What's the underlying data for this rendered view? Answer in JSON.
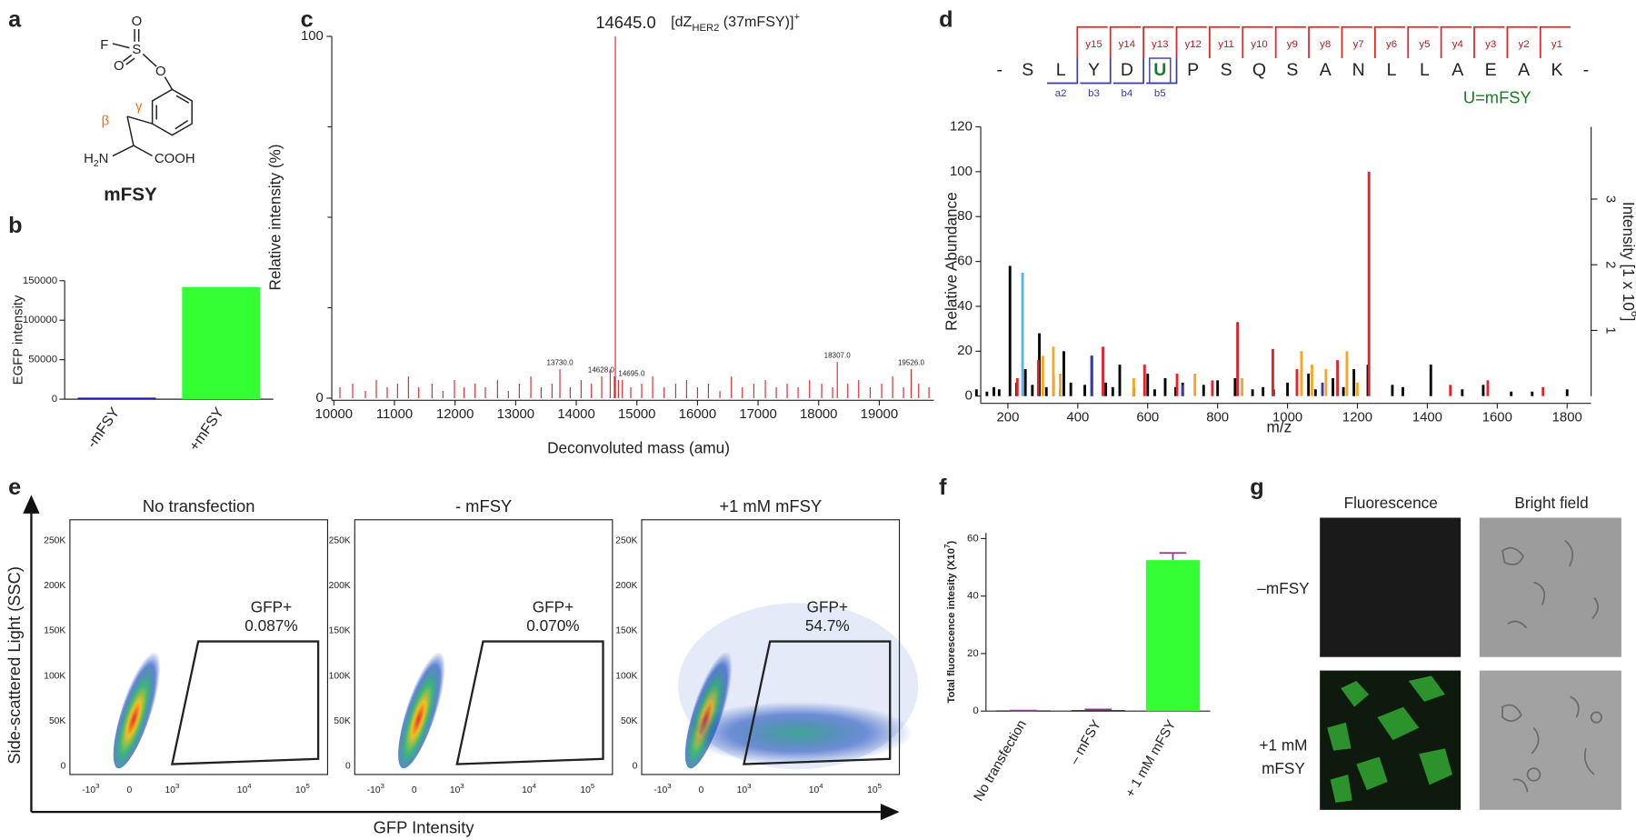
{
  "panel_labels": [
    "a",
    "b",
    "c",
    "d",
    "e",
    "f",
    "g"
  ],
  "structure": {
    "fluorine": "F",
    "sulfur": "S",
    "oxygens": [
      "O",
      "O",
      "O"
    ],
    "beta": "β",
    "gamma": "γ",
    "amine": [
      "H",
      "2",
      "N"
    ],
    "acid": "COOH",
    "name": "mFSY"
  },
  "chart_data": [
    {
      "type": "bar",
      "ylabel": "EGFP intensity",
      "categories": [
        "-mFSY",
        "+mFSY"
      ],
      "values": [
        2000,
        142000
      ],
      "colors": [
        "#1c1ca8",
        "#33ff33"
      ],
      "ylim": [
        0,
        150000
      ],
      "yticks": [
        0,
        50000,
        100000,
        150000
      ]
    },
    {
      "type": "spectrum",
      "xlabel": "Deconvoluted mass (amu)",
      "ylabel": "Relative intensity (%)",
      "annotation": [
        "[dZ",
        "HER2",
        " (37mFSY)]",
        "+"
      ],
      "xlim": [
        10000,
        19900
      ],
      "xticks": [
        10000,
        11000,
        12000,
        13000,
        14000,
        15000,
        16000,
        17000,
        18000,
        19000
      ],
      "ylim": [
        0,
        100
      ],
      "yticks": [
        0,
        100
      ],
      "minor_yticks": [
        25,
        50,
        75
      ],
      "series": [
        {
          "color": "#e8202a",
          "x": [
            13730,
            14628,
            14645,
            14695,
            18307,
            19526
          ],
          "values": [
            8,
            6,
            100,
            5,
            10,
            8
          ],
          "labels": [
            "13730.0",
            "14628.0",
            "14645.0",
            "14695.0",
            "18307.0",
            "19526.0"
          ]
        },
        {
          "color": "#e8202a",
          "x": [
            10100,
            10310,
            10520,
            10700,
            10880,
            11050,
            11230,
            11400,
            11620,
            11800,
            11990,
            12150,
            12330,
            12500,
            12700,
            12880,
            13060,
            13250,
            13420,
            13600,
            13900,
            14080,
            14250,
            14420,
            14560,
            14760,
            14900,
            15080,
            15260,
            15450,
            15640,
            15820,
            16000,
            16180,
            16370,
            16560,
            16740,
            16930,
            17120,
            17300,
            17480,
            17660,
            17850,
            18050,
            18230,
            18480,
            18660,
            18850,
            19040,
            19220,
            19400,
            19650,
            19820
          ],
          "values": [
            3,
            4,
            2,
            5,
            3,
            4,
            6,
            3,
            4,
            2,
            5,
            3,
            4,
            3,
            5,
            2,
            4,
            6,
            3,
            4,
            3,
            5,
            4,
            6,
            8,
            5,
            3,
            4,
            6,
            3,
            4,
            5,
            3,
            4,
            2,
            6,
            3,
            4,
            5,
            3,
            4,
            3,
            5,
            4,
            3,
            4,
            5,
            3,
            4,
            6,
            3,
            4,
            3
          ]
        }
      ]
    },
    {
      "type": "spectrum",
      "xlabel": "m/z",
      "ylabel": "Relative Abundance",
      "y2label": [
        "Intensity [1 x 10",
        "6",
        "]"
      ],
      "xlim": [
        100,
        1880
      ],
      "xticks": [
        200,
        400,
        600,
        800,
        1000,
        1200,
        1400,
        1600,
        1800
      ],
      "ylim": [
        0,
        120
      ],
      "yticks": [
        0,
        20,
        40,
        60,
        80,
        100,
        120
      ],
      "y2lim": [
        0,
        4.1
      ],
      "y2ticks": [
        1,
        2,
        3
      ],
      "series": [
        {
          "color": "#000000",
          "x": [
            110,
            140,
            160,
            175,
            206,
            225,
            250,
            270,
            290,
            310,
            330,
            350,
            360,
            380,
            420,
            440,
            480,
            500,
            520,
            560,
            600,
            620,
            650,
            680,
            700,
            760,
            800,
            850,
            900,
            930,
            960,
            1000,
            1060,
            1080,
            1130,
            1160,
            1190,
            1230,
            1300,
            1330,
            1410,
            1500,
            1560,
            1640,
            1700,
            1800
          ],
          "values": [
            3,
            2,
            4,
            3,
            58,
            6,
            12,
            5,
            28,
            4,
            9,
            3,
            20,
            6,
            5,
            18,
            6,
            4,
            14,
            4,
            10,
            3,
            8,
            4,
            6,
            5,
            7,
            8,
            3,
            4,
            3,
            6,
            10,
            3,
            8,
            4,
            12,
            14,
            5,
            4,
            14,
            3,
            5,
            2,
            2,
            3
          ]
        },
        {
          "color": "#e8202a",
          "x": [
            227,
            287,
            472,
            591,
            684,
            785,
            857,
            958,
            1027,
            1143,
            1233,
            1466,
            1573,
            1731
          ],
          "values": [
            8,
            16,
            22,
            14,
            10,
            7,
            33,
            21,
            12,
            16,
            100,
            5,
            7,
            4
          ]
        },
        {
          "color": "#f5a623",
          "x": [
            300,
            330,
            350,
            560,
            735,
            870,
            1040,
            1070,
            1110,
            1170,
            1200
          ],
          "values": [
            18,
            22,
            10,
            8,
            10,
            8,
            20,
            14,
            12,
            20,
            6
          ]
        },
        {
          "color": "#3a3aa8",
          "x": [
            440,
            700,
            1100
          ],
          "values": [
            18,
            5,
            6
          ]
        },
        {
          "color": "#5ab4e6",
          "x": [
            242
          ],
          "values": [
            55
          ]
        }
      ]
    },
    {
      "type": "bar",
      "ylabel": [
        "Total fluorescence intesity (X10",
        "7",
        ")"
      ],
      "categories": [
        "No transfection",
        "–  mFSY",
        "+ 1 mM mFSY"
      ],
      "values": [
        0.2,
        0.3,
        52.5
      ],
      "errors": [
        0,
        0.3,
        2.5
      ],
      "error_color": "#8b3a8b",
      "colors": [
        "#000000",
        "#000000",
        "#33ff33"
      ],
      "ylim": [
        0,
        62
      ],
      "yticks": [
        0,
        20,
        40,
        60
      ]
    }
  ],
  "peptide": {
    "residues": [
      "-",
      "S",
      "L",
      "Y",
      "D",
      "U",
      "P",
      "S",
      "Q",
      "S",
      "A",
      "N",
      "L",
      "L",
      "A",
      "E",
      "A",
      "K",
      "-"
    ],
    "y_ions": [
      "y15",
      "y14",
      "y13",
      "y12",
      "y11",
      "y10",
      "y9",
      "y8",
      "y7",
      "y6",
      "y5",
      "y4",
      "y3",
      "y2",
      "y1"
    ],
    "b_ions": [
      "a2",
      "b3",
      "b4",
      "b5"
    ],
    "note": "U=mFSY"
  },
  "flow": {
    "ylabel": "Side-scattered Light (SSC)",
    "xlabel": "GFP Intensity",
    "plots": [
      {
        "title": "No transfection",
        "gate": "GFP+",
        "percent": "0.087%"
      },
      {
        "title": "- mFSY",
        "gate": "GFP+",
        "percent": "0.070%"
      },
      {
        "title": "+1 mM mFSY",
        "gate": "GFP+",
        "percent": "54.7%"
      }
    ],
    "yticks": [
      "250K",
      "200K",
      "150K",
      "100K",
      "50K",
      "0"
    ],
    "xticks": [
      [
        "-10",
        "3"
      ],
      [
        "0"
      ],
      [
        "10",
        "3"
      ],
      [
        "10",
        "4"
      ],
      [
        "10",
        "5"
      ]
    ]
  },
  "imaging": {
    "columns": [
      "Fluorescence",
      "Bright field"
    ],
    "rows": [
      [
        "–mFSY"
      ],
      [
        "+1 mM",
        "mFSY"
      ]
    ]
  }
}
